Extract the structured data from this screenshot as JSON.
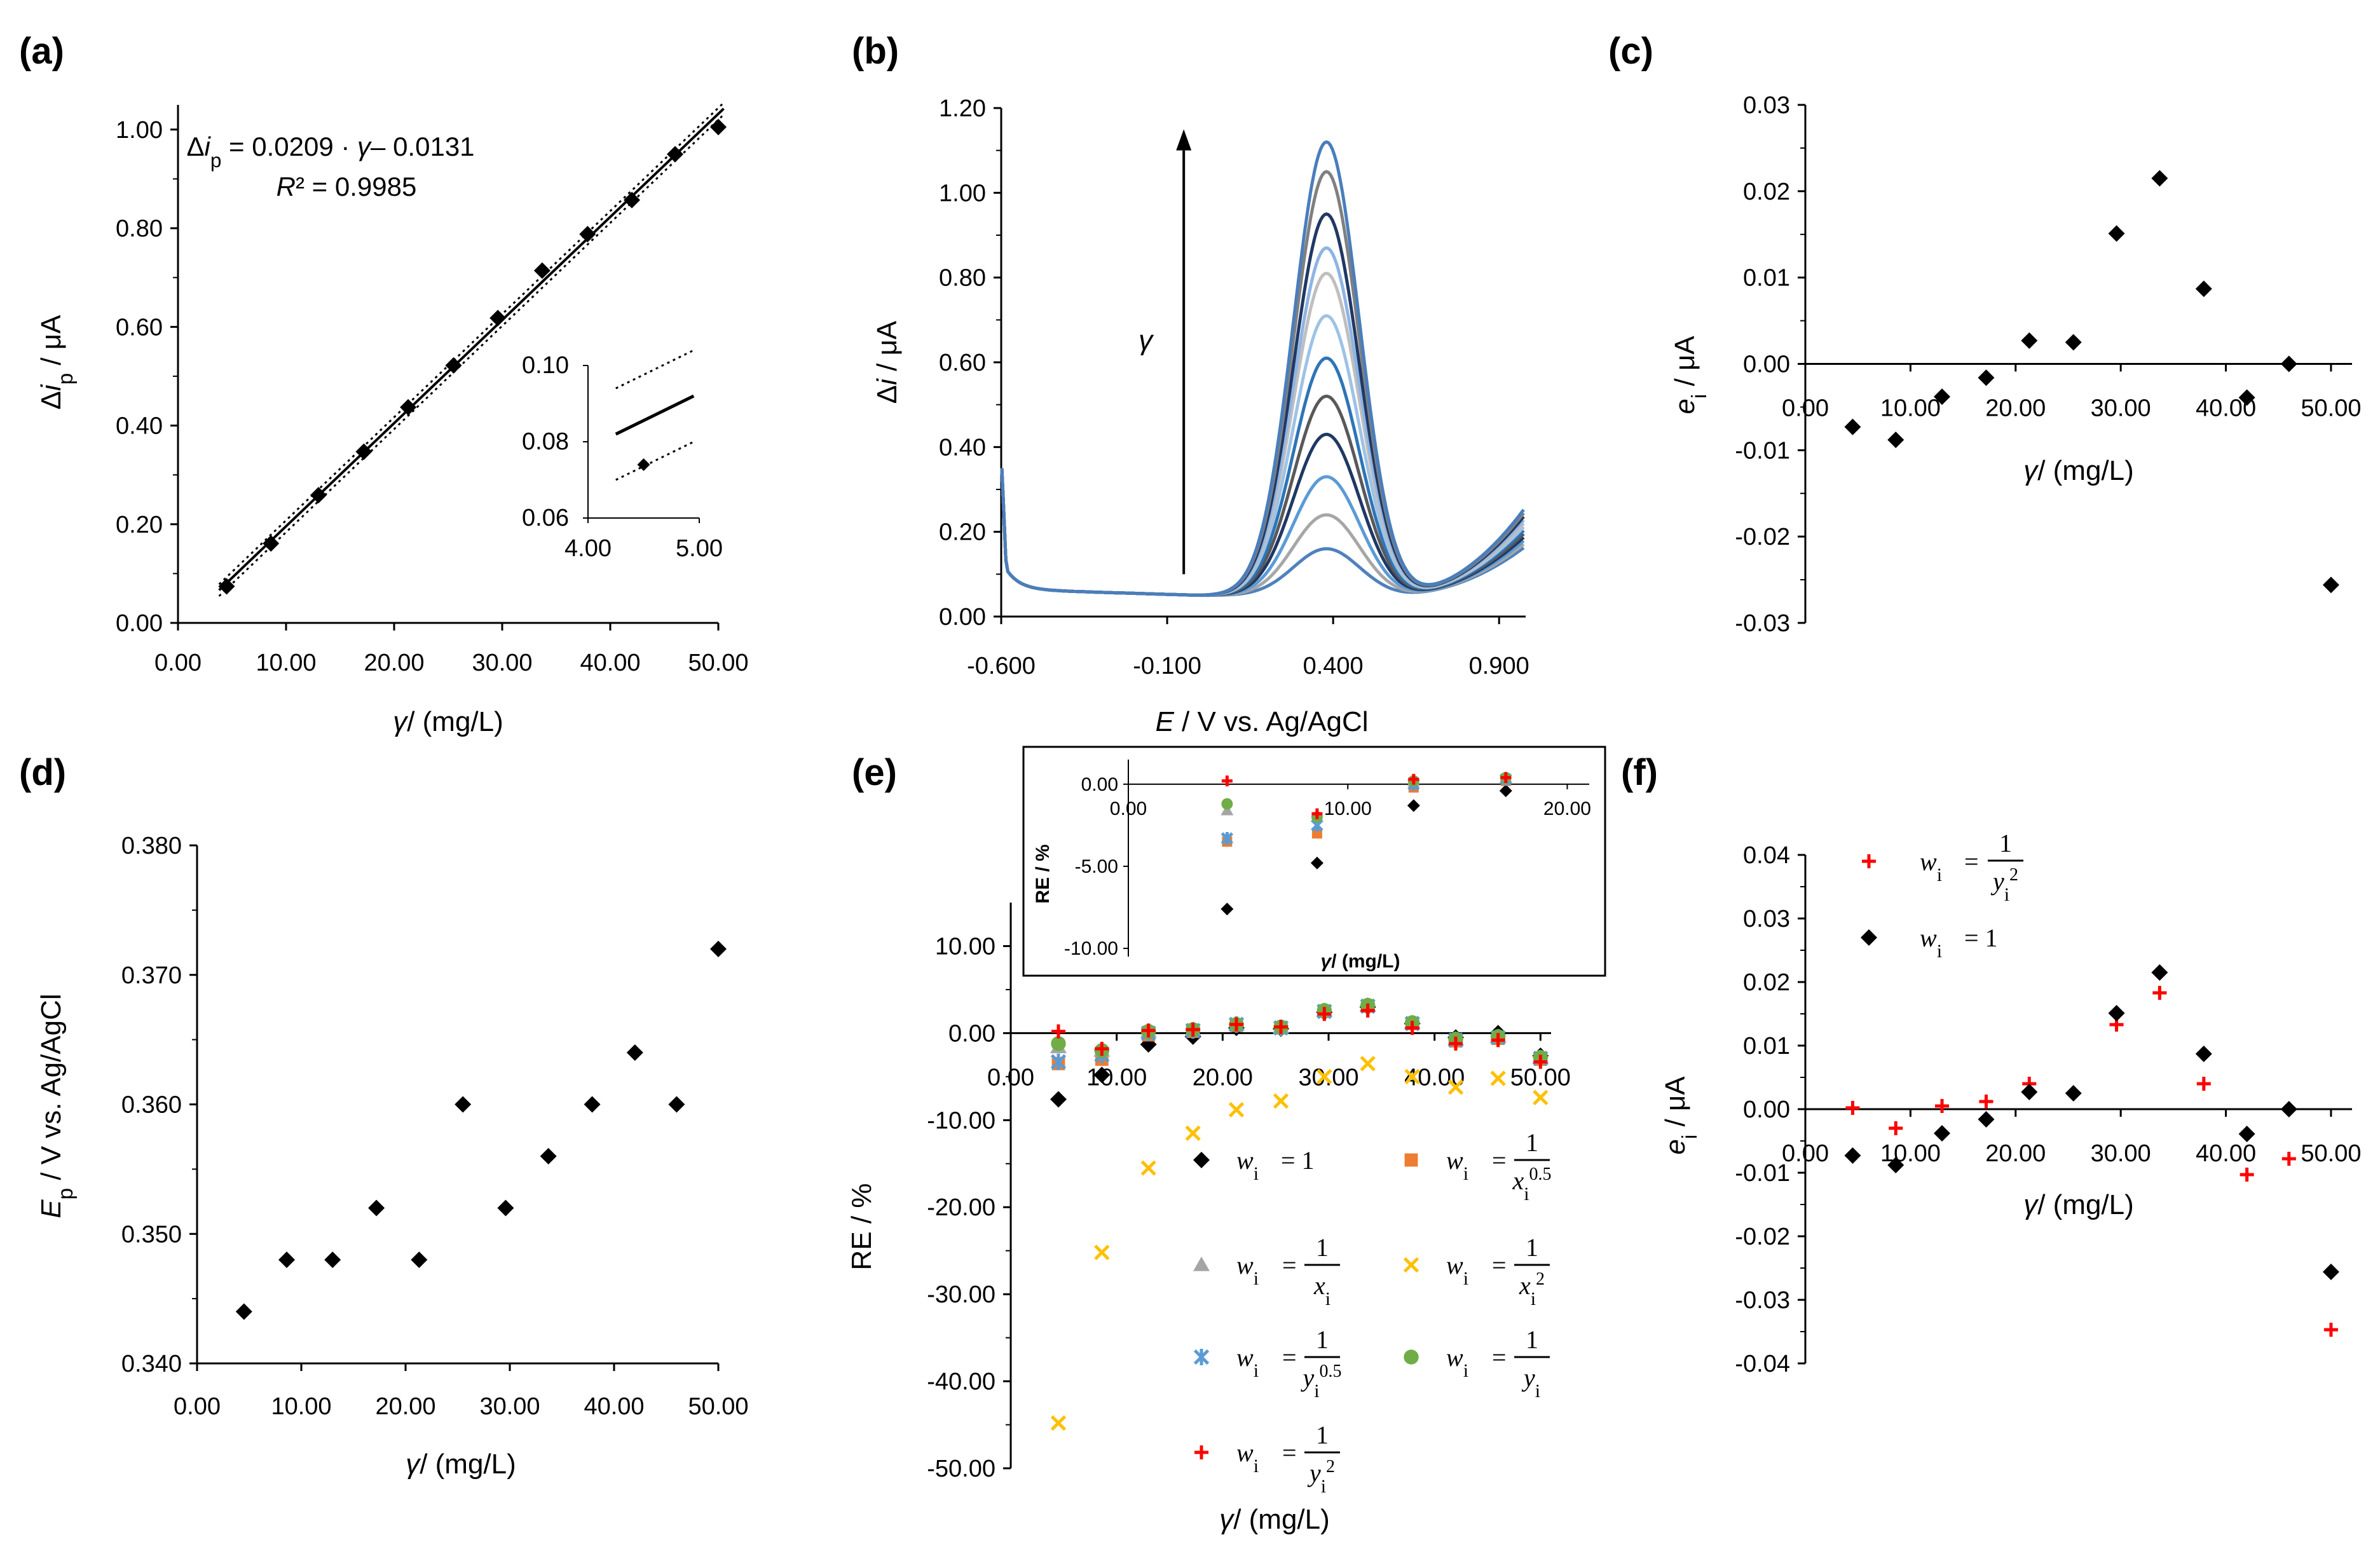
{
  "chart_data": [
    {
      "panel": "(a)",
      "type": "scatter",
      "xlabel": "γ/ (mg/L)",
      "ylabel": "Δi_p / μA",
      "xlim": [
        0,
        50
      ],
      "ylim": [
        0,
        1.05
      ],
      "xticks": [
        "0.00",
        "10.00",
        "20.00",
        "30.00",
        "40.00",
        "50.00"
      ],
      "yticks": [
        "0.00",
        "0.20",
        "0.40",
        "0.60",
        "0.80",
        "1.00"
      ],
      "x": [
        4.5,
        8.6,
        13.0,
        17.2,
        21.3,
        25.5,
        29.6,
        33.7,
        37.9,
        42.0,
        46.0,
        50.0
      ],
      "y": [
        0.074,
        0.161,
        0.259,
        0.347,
        0.437,
        0.522,
        0.618,
        0.714,
        0.788,
        0.857,
        0.95,
        1.005
      ],
      "fit": {
        "slope": 0.0209,
        "intercept": -0.0131
      },
      "equation": "Δi_p = 0.0209 · γ– 0.0131",
      "r2": "R² = 0.9985",
      "inset": {
        "xticks": [
          "4.00",
          "5.00"
        ],
        "yticks": [
          "0.06",
          "0.08",
          "0.10"
        ],
        "xlim": [
          4,
          5
        ],
        "ylim": [
          0.06,
          0.1
        ]
      }
    },
    {
      "panel": "(b)",
      "type": "line",
      "xlabel": "E / V vs. Ag/AgCl",
      "ylabel": "Δi / μA",
      "xlim": [
        -0.6,
        0.98
      ],
      "ylim": [
        0,
        1.2
      ],
      "xticks": [
        "-0.600",
        "-0.100",
        "0.400",
        "0.900"
      ],
      "yticks": [
        "0.00",
        "0.20",
        "0.40",
        "0.60",
        "0.80",
        "1.00",
        "1.20"
      ],
      "arrow_label": "γ",
      "peak_E": 0.38,
      "peak_heights": [
        0.16,
        0.24,
        0.33,
        0.43,
        0.52,
        0.61,
        0.71,
        0.81,
        0.87,
        0.95,
        1.05,
        1.12
      ],
      "series_colors": [
        "#4f81bd",
        "#a6a6a6",
        "#5b9bd5",
        "#1f3864",
        "#595959",
        "#2e75b6",
        "#9dc3e6",
        "#bfbfbf",
        "#8eb4e3",
        "#203864",
        "#808080",
        "#4a7ebb"
      ]
    },
    {
      "panel": "(c)",
      "type": "scatter",
      "xlabel": "γ/ (mg/L)",
      "ylabel": "e_i / μA",
      "xlim": [
        0,
        50
      ],
      "ylim": [
        -0.03,
        0.03
      ],
      "xticks": [
        "0.00",
        "10.00",
        "20.00",
        "30.00",
        "40.00",
        "50.00"
      ],
      "yticks": [
        "-0.03",
        "-0.02",
        "-0.01",
        "0.00",
        "0.01",
        "0.02",
        "0.03"
      ],
      "x": [
        4.5,
        8.6,
        13.0,
        17.2,
        21.3,
        25.5,
        29.6,
        33.7,
        37.9,
        42.0,
        46.0,
        50.0
      ],
      "y": [
        -0.0073,
        -0.0088,
        -0.0038,
        -0.0016,
        0.0027,
        0.0025,
        0.0151,
        0.0215,
        0.0087,
        -0.0039,
        0.0,
        -0.0256
      ]
    },
    {
      "panel": "(d)",
      "type": "scatter",
      "xlabel": "γ/ (mg/L)",
      "ylabel": "E_p / V vs. Ag/AgCl",
      "xlim": [
        0,
        50
      ],
      "ylim": [
        0.34,
        0.38
      ],
      "xticks": [
        "0.00",
        "10.00",
        "20.00",
        "30.00",
        "40.00",
        "50.00"
      ],
      "yticks": [
        "0.340",
        "0.350",
        "0.360",
        "0.370",
        "0.380"
      ],
      "x": [
        4.5,
        8.6,
        13.0,
        17.2,
        21.3,
        25.5,
        29.6,
        33.7,
        37.9,
        42.0,
        46.0,
        50.0
      ],
      "y": [
        0.344,
        0.348,
        0.348,
        0.352,
        0.348,
        0.36,
        0.352,
        0.356,
        0.36,
        0.364,
        0.36,
        0.372
      ]
    },
    {
      "panel": "(e)",
      "type": "scatter",
      "xlabel": "γ/ (mg/L)",
      "ylabel": "RE / %",
      "xlim": [
        0,
        50
      ],
      "ylim": [
        -50,
        15
      ],
      "xticks": [
        "0.00",
        "10.00",
        "20.00",
        "30.00",
        "40.00",
        "50.00"
      ],
      "yticks": [
        "-50.00",
        "-40.00",
        "-30.00",
        "-20.00",
        "-10.00",
        "0.00",
        "10.00"
      ],
      "x": [
        4.5,
        8.6,
        13.0,
        17.2,
        21.3,
        25.5,
        29.6,
        33.7,
        37.9,
        42.0,
        46.0,
        50.0
      ],
      "series": [
        {
          "name": "w_i = 1",
          "marker": "diamond",
          "color": "#000000",
          "values": [
            -7.6,
            -4.8,
            -1.3,
            -0.4,
            0.6,
            0.5,
            2.4,
            3.0,
            1.1,
            -0.5,
            0.0,
            -2.6
          ]
        },
        {
          "name": "w_i = 1/x_i^0.5",
          "marker": "square",
          "color": "#ed7d31",
          "values": [
            -3.5,
            -3.0,
            -0.2,
            0.2,
            0.9,
            0.6,
            2.5,
            3.1,
            1.1,
            -0.9,
            -0.6,
            -3.0
          ]
        },
        {
          "name": "w_i = 1/x_i",
          "marker": "triangle",
          "color": "#a5a5a5",
          "values": [
            -1.6,
            -2.0,
            0.2,
            0.4,
            1.0,
            0.7,
            2.6,
            3.2,
            1.2,
            -0.7,
            -0.4,
            -2.8
          ]
        },
        {
          "name": "w_i = 1/x_i^2",
          "marker": "x",
          "color": "#ffc000",
          "values": [
            -44.8,
            -25.2,
            -15.5,
            -11.5,
            -8.8,
            -7.8,
            -5.0,
            -3.5,
            -5.0,
            -6.2,
            -5.2,
            -7.4
          ]
        },
        {
          "name": "w_i = 1/y_i^0.5",
          "marker": "star",
          "color": "#5b9bd5",
          "values": [
            -3.3,
            -2.5,
            0.0,
            0.3,
            1.0,
            0.6,
            2.5,
            3.1,
            1.1,
            -0.8,
            -0.5,
            -2.9
          ]
        },
        {
          "name": "w_i = 1/y_i",
          "marker": "circle",
          "color": "#70ad47",
          "values": [
            -1.2,
            -2.0,
            0.2,
            0.4,
            1.0,
            0.7,
            2.6,
            3.2,
            1.2,
            -0.7,
            -0.4,
            -2.8
          ]
        },
        {
          "name": "w_i = 1/y_i^2",
          "marker": "plus",
          "color": "#ff0000",
          "values": [
            0.2,
            -1.8,
            0.3,
            0.4,
            1.0,
            0.7,
            2.2,
            2.6,
            0.6,
            -1.2,
            -0.8,
            -3.3
          ]
        }
      ],
      "inset": {
        "xlabel": "γ/ (mg/L)",
        "ylabel": "RE / %",
        "xlim": [
          0,
          20
        ],
        "ylim": [
          -10,
          1
        ],
        "xticks": [
          "0.00",
          "10.00",
          "20.00"
        ],
        "yticks": [
          "0.00",
          "-5.00",
          "-10.00"
        ]
      }
    },
    {
      "panel": "(f)",
      "type": "scatter",
      "xlabel": "γ/ (mg/L)",
      "ylabel": "e_i / μA",
      "xlim": [
        0,
        50
      ],
      "ylim": [
        -0.04,
        0.04
      ],
      "xticks": [
        "0.00",
        "10.00",
        "20.00",
        "30.00",
        "40.00",
        "50.00"
      ],
      "yticks": [
        "-0.04",
        "-0.03",
        "-0.02",
        "-0.01",
        "0.00",
        "0.01",
        "0.02",
        "0.03",
        "0.04"
      ],
      "x": [
        4.5,
        8.6,
        13.0,
        17.2,
        21.3,
        25.5,
        29.6,
        33.7,
        37.9,
        42.0,
        46.0,
        50.0
      ],
      "series": [
        {
          "name": "w_i = 1/y_i^2",
          "marker": "plus",
          "color": "#ff0000",
          "values": [
            0.0002,
            -0.003,
            0.0005,
            0.0012,
            0.004,
            null,
            0.0133,
            0.0183,
            0.004,
            -0.0103,
            -0.0078,
            -0.0347
          ]
        },
        {
          "name": "w_i = 1",
          "marker": "diamond",
          "color": "#000000",
          "values": [
            -0.0073,
            -0.0088,
            -0.0038,
            -0.0016,
            0.0027,
            0.0025,
            0.0151,
            0.0215,
            0.0087,
            -0.0039,
            0.0,
            -0.0256
          ]
        }
      ]
    }
  ],
  "legend_e": [
    {
      "lhs": "w",
      "sub": "i",
      "rhs": "= 1"
    },
    {
      "lhs": "w",
      "sub": "i",
      "num": "1",
      "den": "x",
      "densub": "i",
      "densup": "0.5"
    },
    {
      "lhs": "w",
      "sub": "i",
      "num": "1",
      "den": "x",
      "densub": "i",
      "densup": ""
    },
    {
      "lhs": "w",
      "sub": "i",
      "num": "1",
      "den": "x",
      "densub": "i",
      "densup": "2"
    },
    {
      "lhs": "w",
      "sub": "i",
      "num": "1",
      "den": "y",
      "densub": "i",
      "densup": "0.5"
    },
    {
      "lhs": "w",
      "sub": "i",
      "num": "1",
      "den": "y",
      "densub": "i",
      "densup": ""
    },
    {
      "lhs": "w",
      "sub": "i",
      "num": "1",
      "den": "y",
      "densub": "i",
      "densup": "2"
    }
  ]
}
